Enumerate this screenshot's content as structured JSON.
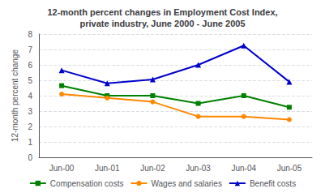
{
  "chart_data": {
    "type": "line",
    "title": "12-month percent changes in Employment Cost Index,\nprivate industry, June 2000 - June 2005",
    "ylabel": "12-month percent change",
    "categories": [
      "Jun-00",
      "Jun-01",
      "Jun-02",
      "Jun-03",
      "Jun-04",
      "Jun-05"
    ],
    "series": [
      {
        "name": "Compensation costs",
        "color": "#008000",
        "marker": "square",
        "values": [
          4.65,
          4.0,
          4.0,
          3.5,
          4.0,
          3.25
        ]
      },
      {
        "name": "Wages and salaries",
        "color": "#ff8800",
        "marker": "circle",
        "values": [
          4.1,
          3.85,
          3.6,
          2.65,
          2.65,
          2.45
        ]
      },
      {
        "name": "Benefit costs",
        "color": "#0000cc",
        "marker": "triangle",
        "values": [
          5.65,
          4.8,
          5.05,
          6.0,
          7.25,
          4.9
        ]
      }
    ],
    "ylim": [
      0,
      8
    ],
    "yticks": [
      0,
      1,
      2,
      3,
      4,
      5,
      6,
      7,
      8
    ],
    "grid": true,
    "legend": "bottom"
  }
}
